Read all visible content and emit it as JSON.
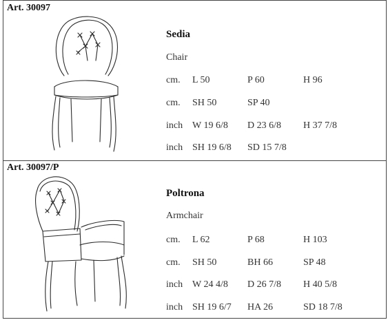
{
  "products": [
    {
      "article": "Art. 30097",
      "name": "Sedia",
      "translation": "Chair",
      "icon": "chair-sketch-icon",
      "rows": [
        {
          "unit": "cm.",
          "v1": "L 50",
          "v2": "P 60",
          "v3": "H 96"
        },
        {
          "unit": "cm.",
          "v1": "SH 50",
          "v2": "SP 40",
          "v3": ""
        },
        {
          "unit": "inch",
          "v1": "W 19 6/8",
          "v2": "D 23 6/8",
          "v3": "H 37 7/8"
        },
        {
          "unit": "inch",
          "v1": "SH 19 6/8",
          "v2": "SD 15 7/8",
          "v3": ""
        }
      ]
    },
    {
      "article": "Art. 30097/P",
      "name": "Poltrona",
      "translation": "Armchair",
      "icon": "armchair-sketch-icon",
      "rows": [
        {
          "unit": "cm.",
          "v1": "L 62",
          "v2": "P 68",
          "v3": "H 103"
        },
        {
          "unit": "cm.",
          "v1": "SH 50",
          "v2": "BH 66",
          "v3": "SP 48"
        },
        {
          "unit": "inch",
          "v1": "W 24 4/8",
          "v2": "D 26 7/8",
          "v3": "H 40 5/8"
        },
        {
          "unit": "inch",
          "v1": "SH 19 6/7",
          "v2": "HA 26",
          "v3": "SD 18 7/8"
        }
      ]
    }
  ]
}
